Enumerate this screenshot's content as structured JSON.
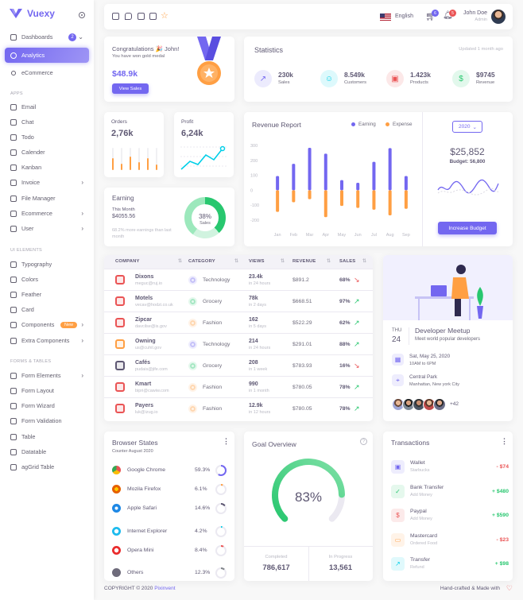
{
  "brand": {
    "name": "Vuexy"
  },
  "sidebar": {
    "items": [
      {
        "label": "Dashboards",
        "badge": "2"
      },
      {
        "label": "Analytics"
      },
      {
        "label": "eCommerce"
      },
      {
        "label": "Email"
      },
      {
        "label": "Chat"
      },
      {
        "label": "Todo"
      },
      {
        "label": "Calender"
      },
      {
        "label": "Kanban"
      },
      {
        "label": "Invoice"
      },
      {
        "label": "File Manager"
      },
      {
        "label": "Ecommerce"
      },
      {
        "label": "User"
      },
      {
        "label": "Typography"
      },
      {
        "label": "Colors"
      },
      {
        "label": "Feather"
      },
      {
        "label": "Card"
      },
      {
        "label": "Components",
        "badge": "New"
      },
      {
        "label": "Extra Components"
      },
      {
        "label": "Form Elements"
      },
      {
        "label": "Form Layout"
      },
      {
        "label": "Form Wizard"
      },
      {
        "label": "Form Validation"
      },
      {
        "label": "Table"
      },
      {
        "label": "Datatable"
      },
      {
        "label": "agGrid Table"
      }
    ],
    "sections": [
      "APPS",
      "UI ELEMENTS",
      "FORMS & TABLES"
    ]
  },
  "navbar": {
    "language": "English",
    "cart_count": "6",
    "notif_count": "5",
    "user_name": "John Doe",
    "user_role": "Admin"
  },
  "congrats": {
    "title": "Congratulations 🎉 John!",
    "subtitle": "You have won gold medal",
    "amount": "$48.9k",
    "button": "View Sales"
  },
  "statistics": {
    "title": "Statistics",
    "updated": "Updated 1 month ago",
    "items": [
      {
        "value": "230k",
        "label": "Sales",
        "icon": "trending-up-icon",
        "color": "#7367f0"
      },
      {
        "value": "8.549k",
        "label": "Customers",
        "icon": "user-icon",
        "color": "#00cfe8"
      },
      {
        "value": "1.423k",
        "label": "Products",
        "icon": "box-icon",
        "color": "#ea5455"
      },
      {
        "value": "$9745",
        "label": "Revenue",
        "icon": "dollar-icon",
        "color": "#28c76f"
      }
    ]
  },
  "orders": {
    "title": "Orders",
    "value": "2,76k"
  },
  "profit": {
    "title": "Profit",
    "value": "6,24k"
  },
  "earning": {
    "title": "Earning",
    "period": "This Month",
    "amount": "$4055.56",
    "note": "68.2% more earnings than last month",
    "donut_pct": "38%",
    "donut_label": "Sales"
  },
  "revenue_report": {
    "title": "Revenue Report",
    "legend": [
      "Earning",
      "Expense"
    ],
    "year": "2020",
    "budget_value": "$25,852",
    "budget_label": "Budget: 56,800",
    "button": "Increase Budget"
  },
  "chart_data": {
    "type": "bar",
    "categories": [
      "Jan",
      "Feb",
      "Mar",
      "Apr",
      "May",
      "Jun",
      "Jul",
      "Aug",
      "Sep"
    ],
    "series": [
      {
        "name": "Earning",
        "values": [
          95,
          177,
          284,
          245,
          68,
          50,
          190,
          282,
          95
        ],
        "color": "#7367f0"
      },
      {
        "name": "Expense",
        "values": [
          -145,
          -80,
          -60,
          -180,
          -105,
          -118,
          -130,
          -168,
          -124
        ],
        "color": "#ff9f43"
      }
    ],
    "yticks": [
      "300",
      "200",
      "100",
      "0",
      "-100",
      "-200"
    ],
    "ylim": [
      -200,
      300
    ]
  },
  "table": {
    "headers": [
      "COMPANY",
      "CATEGORY",
      "VIEWS",
      "REVENUE",
      "SALES"
    ],
    "rows": [
      {
        "name": "Dixons",
        "email": "meguc@ruj.io",
        "category": "Technology",
        "views": "23.4k",
        "vsub": "in 24 hours",
        "revenue": "$891.2",
        "sales": "68%",
        "up": false
      },
      {
        "name": "Motels",
        "email": "vecav@hodzi.co.uk",
        "category": "Grocery",
        "views": "78k",
        "vsub": "in 2 days",
        "revenue": "$668.51",
        "sales": "97%",
        "up": true
      },
      {
        "name": "Zipcar",
        "email": "davcilse@is.gov",
        "category": "Fashion",
        "views": "162",
        "vsub": "in 5 days",
        "revenue": "$522.29",
        "sales": "62%",
        "up": true
      },
      {
        "name": "Owning",
        "email": "us@cuhil.gov",
        "category": "Technology",
        "views": "214",
        "vsub": "in 24 hours",
        "revenue": "$291.01",
        "sales": "88%",
        "up": true
      },
      {
        "name": "Cafés",
        "email": "pudais@jife.com",
        "category": "Grocery",
        "views": "208",
        "vsub": "in 1 week",
        "revenue": "$783.93",
        "sales": "16%",
        "up": false
      },
      {
        "name": "Kmart",
        "email": "bipri@cawiw.com",
        "category": "Fashion",
        "views": "990",
        "vsub": "in 1 month",
        "revenue": "$780.05",
        "sales": "78%",
        "up": true
      },
      {
        "name": "Payers",
        "email": "luk@izug.io",
        "category": "Fashion",
        "views": "12.9k",
        "vsub": "in 12 hours",
        "revenue": "$780.05",
        "sales": "78%",
        "up": true
      }
    ]
  },
  "meetup": {
    "day": "THU",
    "date": "24",
    "title": "Developer Meetup",
    "subtitle": "Meet world popular developers",
    "when": "Sat, May 25, 2020",
    "time": "10AM to 6PM",
    "where": "Central Park",
    "address": "Manhattan, New york City",
    "more": "+42"
  },
  "browser": {
    "title": "Browser States",
    "subtitle": "Counter August 2020",
    "items": [
      {
        "name": "Google Chrome",
        "pct": "59.3%",
        "fill": 0.593,
        "color": "#7367f0"
      },
      {
        "name": "Mozila Firefox",
        "pct": "6.1%",
        "fill": 0.061,
        "color": "#ff9f43"
      },
      {
        "name": "Apple Safari",
        "pct": "14.6%",
        "fill": 0.146,
        "color": "#5e5873"
      },
      {
        "name": "Internet Explorer",
        "pct": "4.2%",
        "fill": 0.042,
        "color": "#00cfe8"
      },
      {
        "name": "Opera Mini",
        "pct": "8.4%",
        "fill": 0.084,
        "color": "#ea5455"
      },
      {
        "name": "Others",
        "pct": "12.3%",
        "fill": 0.123,
        "color": "#82868b"
      }
    ]
  },
  "goal": {
    "title": "Goal Overview",
    "pct": "83%",
    "fill": 0.83,
    "completed_label": "Completed",
    "completed": "786,617",
    "progress_label": "In Progress",
    "progress": "13,561"
  },
  "transactions": {
    "title": "Transactions",
    "items": [
      {
        "name": "Wallet",
        "sub": "Starbucks",
        "amount": "- $74",
        "color": "#ea5455",
        "icon_bg": "#eeedfd",
        "icon_color": "#7367f0",
        "icon": "▣"
      },
      {
        "name": "Bank Transfer",
        "sub": "Add Money",
        "amount": "+ $480",
        "color": "#28c76f",
        "icon_bg": "#e5f8ed",
        "icon_color": "#28c76f",
        "icon": "✓"
      },
      {
        "name": "Paypal",
        "sub": "Add Money",
        "amount": "+ $590",
        "color": "#28c76f",
        "icon_bg": "#fceaea",
        "icon_color": "#ea5455",
        "icon": "$"
      },
      {
        "name": "Mastercard",
        "sub": "Ordered Food",
        "amount": "- $23",
        "color": "#ea5455",
        "icon_bg": "#fff3e8",
        "icon_color": "#ff9f43",
        "icon": "▭"
      },
      {
        "name": "Transfer",
        "sub": "Refund",
        "amount": "+ $98",
        "color": "#28c76f",
        "icon_bg": "#e0f9fc",
        "icon_color": "#00cfe8",
        "icon": "↗"
      }
    ]
  },
  "footer": {
    "copyright": "COPYRIGHT © 2020",
    "company": "Pixinvent",
    "right": "Hand-crafted & Made with"
  }
}
